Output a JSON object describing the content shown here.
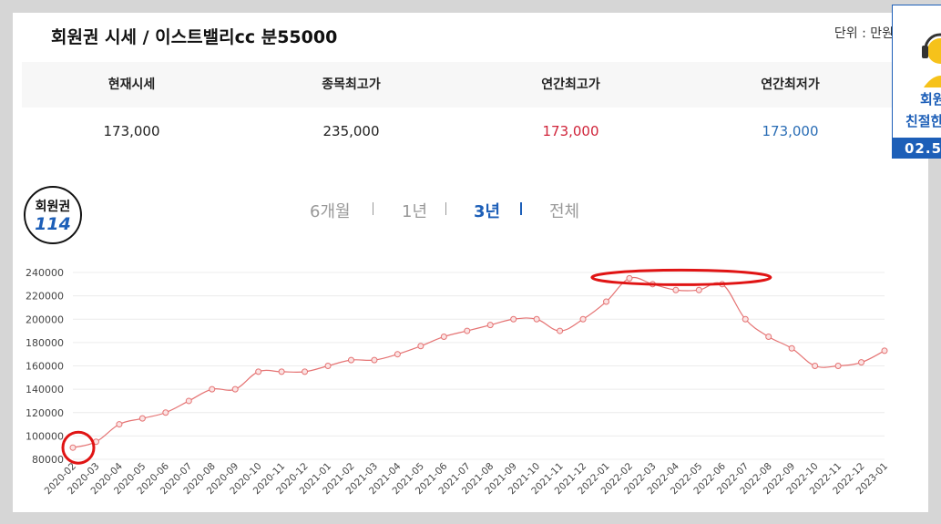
{
  "header": {
    "title": "회원권 시세 / 이스트밸리cc 분55000",
    "unit": "단위 : 만원"
  },
  "stats": {
    "headers": [
      "현재시세",
      "종목최고가",
      "연간최고가",
      "연간최저가"
    ],
    "values": [
      "173,000",
      "235,000",
      "173,000",
      "173,000"
    ]
  },
  "logo": {
    "line1": "회원권",
    "line2": "114"
  },
  "period_tabs": [
    {
      "label": "6개월",
      "active": false
    },
    {
      "label": "1년",
      "active": false
    },
    {
      "label": "3년",
      "active": true
    },
    {
      "label": "전체",
      "active": false
    }
  ],
  "side_banner": {
    "line1": "회원",
    "line2": "친절한",
    "line3": "02.5"
  },
  "colors": {
    "line": "#e57373",
    "accent": "#1d5fb8",
    "high": "#d0243a",
    "annotation": "#e01414"
  },
  "chart_data": {
    "type": "line",
    "x": [
      "2020-02",
      "2020-03",
      "2020-04",
      "2020-05",
      "2020-06",
      "2020-07",
      "2020-08",
      "2020-09",
      "2020-10",
      "2020-11",
      "2020-12",
      "2021-01",
      "2021-02",
      "2021-03",
      "2021-04",
      "2021-05",
      "2021-06",
      "2021-07",
      "2021-08",
      "2021-09",
      "2021-10",
      "2021-11",
      "2021-12",
      "2022-01",
      "2022-02",
      "2022-03",
      "2022-04",
      "2022-05",
      "2022-06",
      "2022-07",
      "2022-08",
      "2022-09",
      "2022-10",
      "2022-11",
      "2022-12",
      "2023-01"
    ],
    "values": [
      90000,
      95000,
      110000,
      115000,
      120000,
      130000,
      140000,
      140000,
      155000,
      155000,
      155000,
      160000,
      165000,
      165000,
      170000,
      177000,
      185000,
      190000,
      195000,
      200000,
      200000,
      190000,
      200000,
      215000,
      235000,
      230000,
      225000,
      225000,
      230000,
      200000,
      185000,
      175000,
      160000,
      160000,
      163000,
      173000
    ],
    "yticks": [
      80000,
      100000,
      120000,
      140000,
      160000,
      180000,
      200000,
      220000,
      240000
    ],
    "ylim": [
      80000,
      240000
    ],
    "grid": true
  }
}
